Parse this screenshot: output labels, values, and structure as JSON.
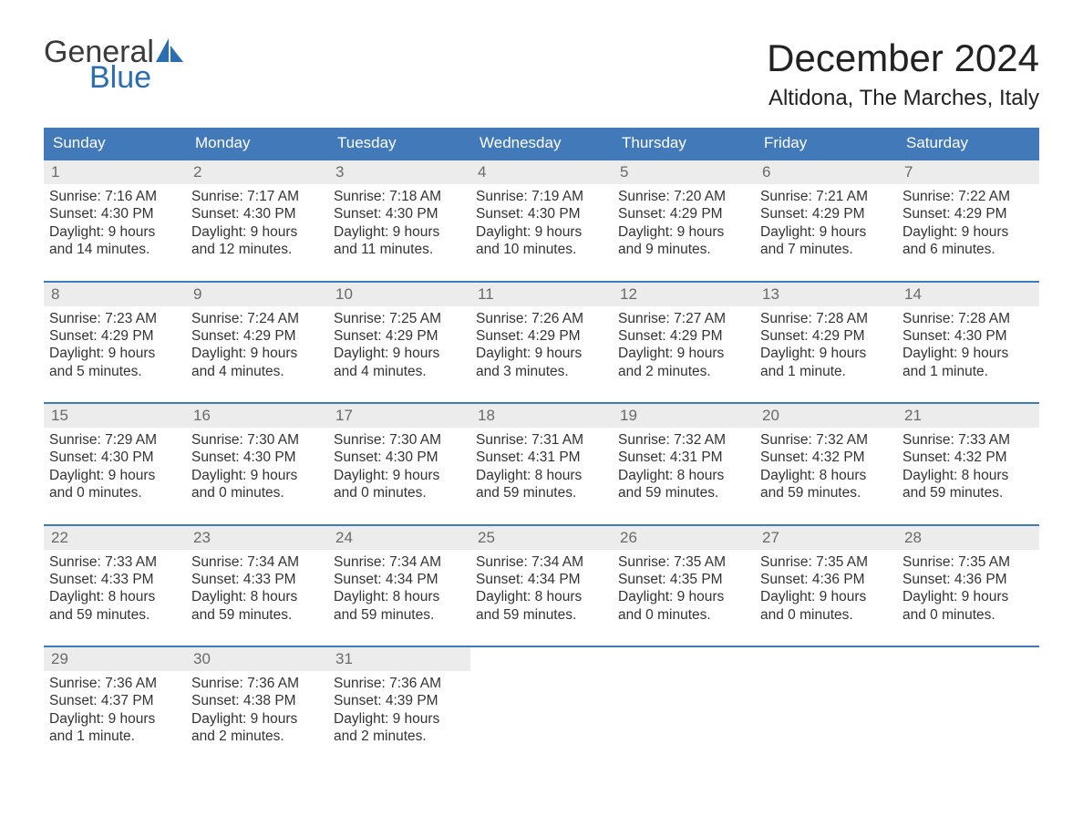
{
  "logo": {
    "word1": "General",
    "word2": "Blue"
  },
  "title": "December 2024",
  "location": "Altidona, The Marches, Italy",
  "colors": {
    "header_bg": "#4279b9",
    "header_text": "#ffffff",
    "daynum_bg": "#ececec",
    "daynum_text": "#6a6a6a",
    "body_text": "#333333",
    "rule": "#4279b9",
    "logo_general": "#3a3a3a",
    "logo_blue": "#2a6db3"
  },
  "typography": {
    "title_fontsize": 42,
    "location_fontsize": 24,
    "dayname_fontsize": 17,
    "daynum_fontsize": 17,
    "cell_fontsize": 15.5,
    "logo_fontsize": 34
  },
  "daynames": [
    "Sunday",
    "Monday",
    "Tuesday",
    "Wednesday",
    "Thursday",
    "Friday",
    "Saturday"
  ],
  "weeks": [
    [
      {
        "n": "1",
        "sunrise": "Sunrise: 7:16 AM",
        "sunset": "Sunset: 4:30 PM",
        "d1": "Daylight: 9 hours",
        "d2": "and 14 minutes."
      },
      {
        "n": "2",
        "sunrise": "Sunrise: 7:17 AM",
        "sunset": "Sunset: 4:30 PM",
        "d1": "Daylight: 9 hours",
        "d2": "and 12 minutes."
      },
      {
        "n": "3",
        "sunrise": "Sunrise: 7:18 AM",
        "sunset": "Sunset: 4:30 PM",
        "d1": "Daylight: 9 hours",
        "d2": "and 11 minutes."
      },
      {
        "n": "4",
        "sunrise": "Sunrise: 7:19 AM",
        "sunset": "Sunset: 4:30 PM",
        "d1": "Daylight: 9 hours",
        "d2": "and 10 minutes."
      },
      {
        "n": "5",
        "sunrise": "Sunrise: 7:20 AM",
        "sunset": "Sunset: 4:29 PM",
        "d1": "Daylight: 9 hours",
        "d2": "and 9 minutes."
      },
      {
        "n": "6",
        "sunrise": "Sunrise: 7:21 AM",
        "sunset": "Sunset: 4:29 PM",
        "d1": "Daylight: 9 hours",
        "d2": "and 7 minutes."
      },
      {
        "n": "7",
        "sunrise": "Sunrise: 7:22 AM",
        "sunset": "Sunset: 4:29 PM",
        "d1": "Daylight: 9 hours",
        "d2": "and 6 minutes."
      }
    ],
    [
      {
        "n": "8",
        "sunrise": "Sunrise: 7:23 AM",
        "sunset": "Sunset: 4:29 PM",
        "d1": "Daylight: 9 hours",
        "d2": "and 5 minutes."
      },
      {
        "n": "9",
        "sunrise": "Sunrise: 7:24 AM",
        "sunset": "Sunset: 4:29 PM",
        "d1": "Daylight: 9 hours",
        "d2": "and 4 minutes."
      },
      {
        "n": "10",
        "sunrise": "Sunrise: 7:25 AM",
        "sunset": "Sunset: 4:29 PM",
        "d1": "Daylight: 9 hours",
        "d2": "and 4 minutes."
      },
      {
        "n": "11",
        "sunrise": "Sunrise: 7:26 AM",
        "sunset": "Sunset: 4:29 PM",
        "d1": "Daylight: 9 hours",
        "d2": "and 3 minutes."
      },
      {
        "n": "12",
        "sunrise": "Sunrise: 7:27 AM",
        "sunset": "Sunset: 4:29 PM",
        "d1": "Daylight: 9 hours",
        "d2": "and 2 minutes."
      },
      {
        "n": "13",
        "sunrise": "Sunrise: 7:28 AM",
        "sunset": "Sunset: 4:29 PM",
        "d1": "Daylight: 9 hours",
        "d2": "and 1 minute."
      },
      {
        "n": "14",
        "sunrise": "Sunrise: 7:28 AM",
        "sunset": "Sunset: 4:30 PM",
        "d1": "Daylight: 9 hours",
        "d2": "and 1 minute."
      }
    ],
    [
      {
        "n": "15",
        "sunrise": "Sunrise: 7:29 AM",
        "sunset": "Sunset: 4:30 PM",
        "d1": "Daylight: 9 hours",
        "d2": "and 0 minutes."
      },
      {
        "n": "16",
        "sunrise": "Sunrise: 7:30 AM",
        "sunset": "Sunset: 4:30 PM",
        "d1": "Daylight: 9 hours",
        "d2": "and 0 minutes."
      },
      {
        "n": "17",
        "sunrise": "Sunrise: 7:30 AM",
        "sunset": "Sunset: 4:30 PM",
        "d1": "Daylight: 9 hours",
        "d2": "and 0 minutes."
      },
      {
        "n": "18",
        "sunrise": "Sunrise: 7:31 AM",
        "sunset": "Sunset: 4:31 PM",
        "d1": "Daylight: 8 hours",
        "d2": "and 59 minutes."
      },
      {
        "n": "19",
        "sunrise": "Sunrise: 7:32 AM",
        "sunset": "Sunset: 4:31 PM",
        "d1": "Daylight: 8 hours",
        "d2": "and 59 minutes."
      },
      {
        "n": "20",
        "sunrise": "Sunrise: 7:32 AM",
        "sunset": "Sunset: 4:32 PM",
        "d1": "Daylight: 8 hours",
        "d2": "and 59 minutes."
      },
      {
        "n": "21",
        "sunrise": "Sunrise: 7:33 AM",
        "sunset": "Sunset: 4:32 PM",
        "d1": "Daylight: 8 hours",
        "d2": "and 59 minutes."
      }
    ],
    [
      {
        "n": "22",
        "sunrise": "Sunrise: 7:33 AM",
        "sunset": "Sunset: 4:33 PM",
        "d1": "Daylight: 8 hours",
        "d2": "and 59 minutes."
      },
      {
        "n": "23",
        "sunrise": "Sunrise: 7:34 AM",
        "sunset": "Sunset: 4:33 PM",
        "d1": "Daylight: 8 hours",
        "d2": "and 59 minutes."
      },
      {
        "n": "24",
        "sunrise": "Sunrise: 7:34 AM",
        "sunset": "Sunset: 4:34 PM",
        "d1": "Daylight: 8 hours",
        "d2": "and 59 minutes."
      },
      {
        "n": "25",
        "sunrise": "Sunrise: 7:34 AM",
        "sunset": "Sunset: 4:34 PM",
        "d1": "Daylight: 8 hours",
        "d2": "and 59 minutes."
      },
      {
        "n": "26",
        "sunrise": "Sunrise: 7:35 AM",
        "sunset": "Sunset: 4:35 PM",
        "d1": "Daylight: 9 hours",
        "d2": "and 0 minutes."
      },
      {
        "n": "27",
        "sunrise": "Sunrise: 7:35 AM",
        "sunset": "Sunset: 4:36 PM",
        "d1": "Daylight: 9 hours",
        "d2": "and 0 minutes."
      },
      {
        "n": "28",
        "sunrise": "Sunrise: 7:35 AM",
        "sunset": "Sunset: 4:36 PM",
        "d1": "Daylight: 9 hours",
        "d2": "and 0 minutes."
      }
    ],
    [
      {
        "n": "29",
        "sunrise": "Sunrise: 7:36 AM",
        "sunset": "Sunset: 4:37 PM",
        "d1": "Daylight: 9 hours",
        "d2": "and 1 minute."
      },
      {
        "n": "30",
        "sunrise": "Sunrise: 7:36 AM",
        "sunset": "Sunset: 4:38 PM",
        "d1": "Daylight: 9 hours",
        "d2": "and 2 minutes."
      },
      {
        "n": "31",
        "sunrise": "Sunrise: 7:36 AM",
        "sunset": "Sunset: 4:39 PM",
        "d1": "Daylight: 9 hours",
        "d2": "and 2 minutes."
      },
      null,
      null,
      null,
      null
    ]
  ]
}
